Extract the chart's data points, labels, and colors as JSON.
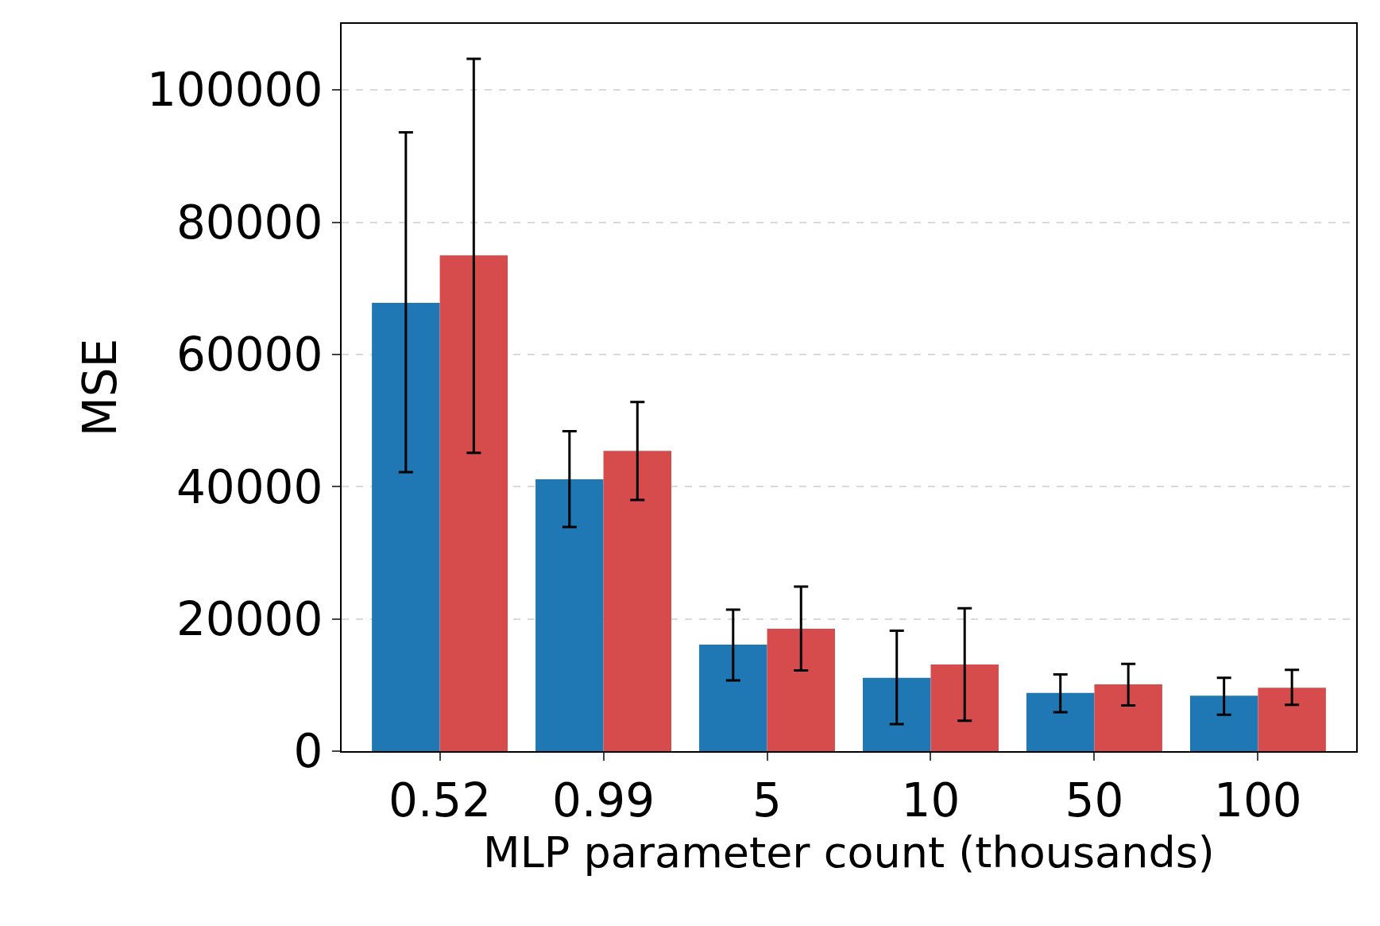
{
  "chart_data": {
    "type": "bar",
    "xlabel": "MLP parameter count (thousands)",
    "ylabel": "MSE",
    "categories": [
      "0.52",
      "0.99",
      "5",
      "10",
      "50",
      "100"
    ],
    "series": [
      {
        "color": "#1f77b4",
        "values": [
          67800,
          41100,
          16100,
          11100,
          8800,
          8400
        ],
        "errors": [
          [
            42200,
            93600
          ],
          [
            33900,
            48400
          ],
          [
            10700,
            21400
          ],
          [
            4100,
            18200
          ],
          [
            5900,
            11600
          ],
          [
            5500,
            11100
          ]
        ]
      },
      {
        "color": "#d64c4c",
        "values": [
          75000,
          45400,
          18500,
          13100,
          10100,
          9600
        ],
        "errors": [
          [
            45100,
            104700
          ],
          [
            38000,
            52800
          ],
          [
            12200,
            24900
          ],
          [
            4600,
            21600
          ],
          [
            6900,
            13200
          ],
          [
            7000,
            12300
          ]
        ]
      }
    ],
    "ylim": [
      0,
      110000
    ],
    "yticks": [
      0,
      20000,
      40000,
      60000,
      80000,
      100000
    ],
    "grid": "y"
  }
}
